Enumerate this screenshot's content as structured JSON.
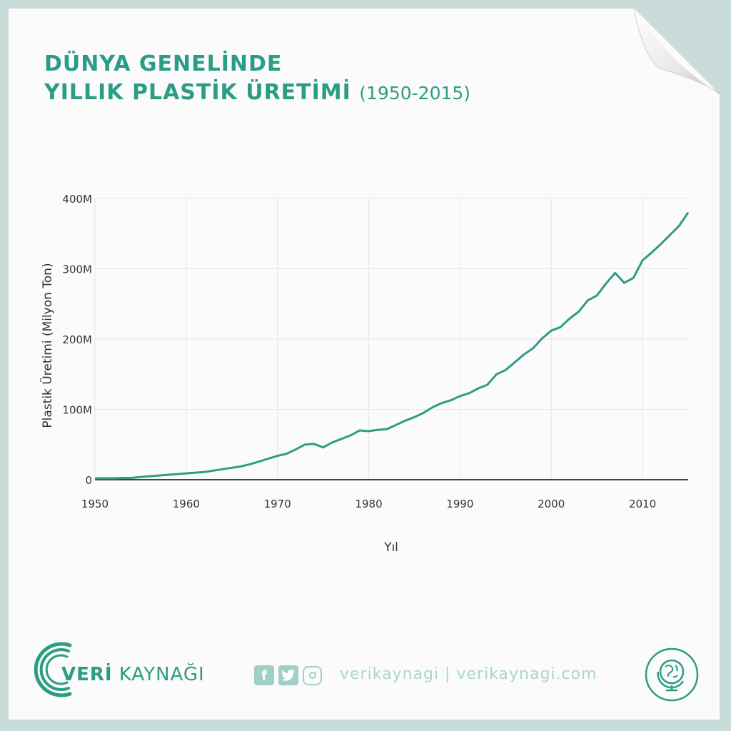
{
  "title": {
    "line1": "DÜNYA GENELİNDE",
    "line2": "YILLIK PLASTİK ÜRETİMİ",
    "years": "(1950-2015)"
  },
  "footer": {
    "brand_bold": "VERİ",
    "brand_rest": " KAYNAĞI",
    "handle": "verikaynagi | verikaynagi.com",
    "icons": [
      "facebook-icon",
      "twitter-icon",
      "instagram-icon",
      "globe-icon"
    ]
  },
  "colors": {
    "accent": "#2a9d84",
    "line": "#2e9c87",
    "grid": "#e6e6e6",
    "axis": "#444444"
  },
  "chart_data": {
    "type": "line",
    "title": "DÜNYA GENELİNDE YILLIK PLASTİK ÜRETİMİ (1950-2015)",
    "xlabel": "Yıl",
    "ylabel": "Plastik Üretimi (Milyon Ton)",
    "xlim": [
      1950,
      2015
    ],
    "ylim": [
      0,
      400
    ],
    "x_ticks": [
      1950,
      1960,
      1970,
      1980,
      1990,
      2000,
      2010
    ],
    "x_tick_labels": [
      "1950",
      "1960",
      "1970",
      "1980",
      "1990",
      "2000",
      "2010"
    ],
    "y_ticks": [
      0,
      100,
      200,
      300,
      400
    ],
    "y_tick_labels": [
      "0",
      "100M",
      "200M",
      "300M",
      "400M"
    ],
    "grid": true,
    "series": [
      {
        "x": [
          1950,
          1951,
          1952,
          1953,
          1954,
          1955,
          1956,
          1957,
          1958,
          1959,
          1960,
          1961,
          1962,
          1963,
          1964,
          1965,
          1966,
          1967,
          1968,
          1969,
          1970,
          1971,
          1972,
          1973,
          1974,
          1975,
          1976,
          1977,
          1978,
          1979,
          1980,
          1981,
          1982,
          1983,
          1984,
          1985,
          1986,
          1987,
          1988,
          1989,
          1990,
          1991,
          1992,
          1993,
          1994,
          1995,
          1996,
          1997,
          1998,
          1999,
          2000,
          2001,
          2002,
          2003,
          2004,
          2005,
          2006,
          2007,
          2008,
          2009,
          2010,
          2011,
          2012,
          2013,
          2014,
          2015
        ],
        "values": [
          2,
          2,
          2,
          2.5,
          2.5,
          4,
          5,
          6,
          7,
          8,
          9,
          10,
          11,
          13,
          15,
          17,
          19,
          22,
          26,
          30,
          34,
          37,
          43,
          50,
          51,
          46,
          53,
          58,
          63,
          70,
          69,
          71,
          72,
          78,
          84,
          89,
          95,
          103,
          109,
          113,
          119,
          123,
          130,
          135,
          150,
          156,
          167,
          178,
          187,
          201,
          212,
          217,
          229,
          239,
          255,
          262,
          279,
          294,
          280,
          287,
          312,
          323,
          335,
          348,
          361,
          380
        ]
      }
    ]
  }
}
